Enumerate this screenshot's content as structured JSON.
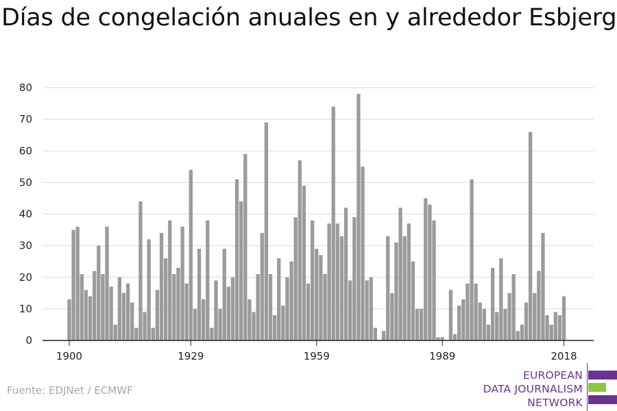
{
  "title": "Días de congelación anuales en y alrededor Esbjerg",
  "source": "Fuente: EDJNet / ECMWF",
  "logo": {
    "lines": [
      "EUROPEAN",
      "DATA JOURNALISM",
      "NETWORK"
    ],
    "colors": {
      "purple": "#6b3291",
      "green": "#8dc63f"
    }
  },
  "colors": {
    "bar": "#9b9b9b",
    "grid": "#d9d9d9",
    "axis": "#222222",
    "text": "#222222"
  },
  "chart_data": {
    "type": "bar",
    "x_start": 1900,
    "x_end": 2018,
    "xticks": [
      1900,
      1929,
      1959,
      1989,
      2018
    ],
    "yticks": [
      0,
      10,
      20,
      30,
      40,
      50,
      60,
      70,
      80
    ],
    "ylim": [
      0,
      80
    ],
    "grid": true,
    "values": [
      13,
      35,
      36,
      21,
      16,
      14,
      22,
      30,
      21,
      36,
      17,
      5,
      20,
      15,
      18,
      12,
      4,
      44,
      9,
      32,
      4,
      16,
      34,
      26,
      38,
      21,
      23,
      36,
      18,
      54,
      10,
      29,
      13,
      38,
      4,
      19,
      10,
      29,
      17,
      20,
      51,
      44,
      59,
      13,
      9,
      21,
      34,
      69,
      21,
      8,
      26,
      11,
      20,
      25,
      39,
      57,
      49,
      18,
      38,
      29,
      27,
      21,
      37,
      74,
      37,
      33,
      42,
      19,
      39,
      78,
      55,
      19,
      20,
      4,
      0,
      3,
      33,
      15,
      31,
      42,
      33,
      37,
      25,
      10,
      10,
      45,
      43,
      38,
      1,
      1,
      0,
      16,
      2,
      11,
      13,
      18,
      51,
      18,
      12,
      10,
      5,
      23,
      9,
      26,
      10,
      15,
      21,
      3,
      5,
      12,
      66,
      15,
      22,
      34,
      8,
      5,
      9,
      8,
      14
    ]
  }
}
